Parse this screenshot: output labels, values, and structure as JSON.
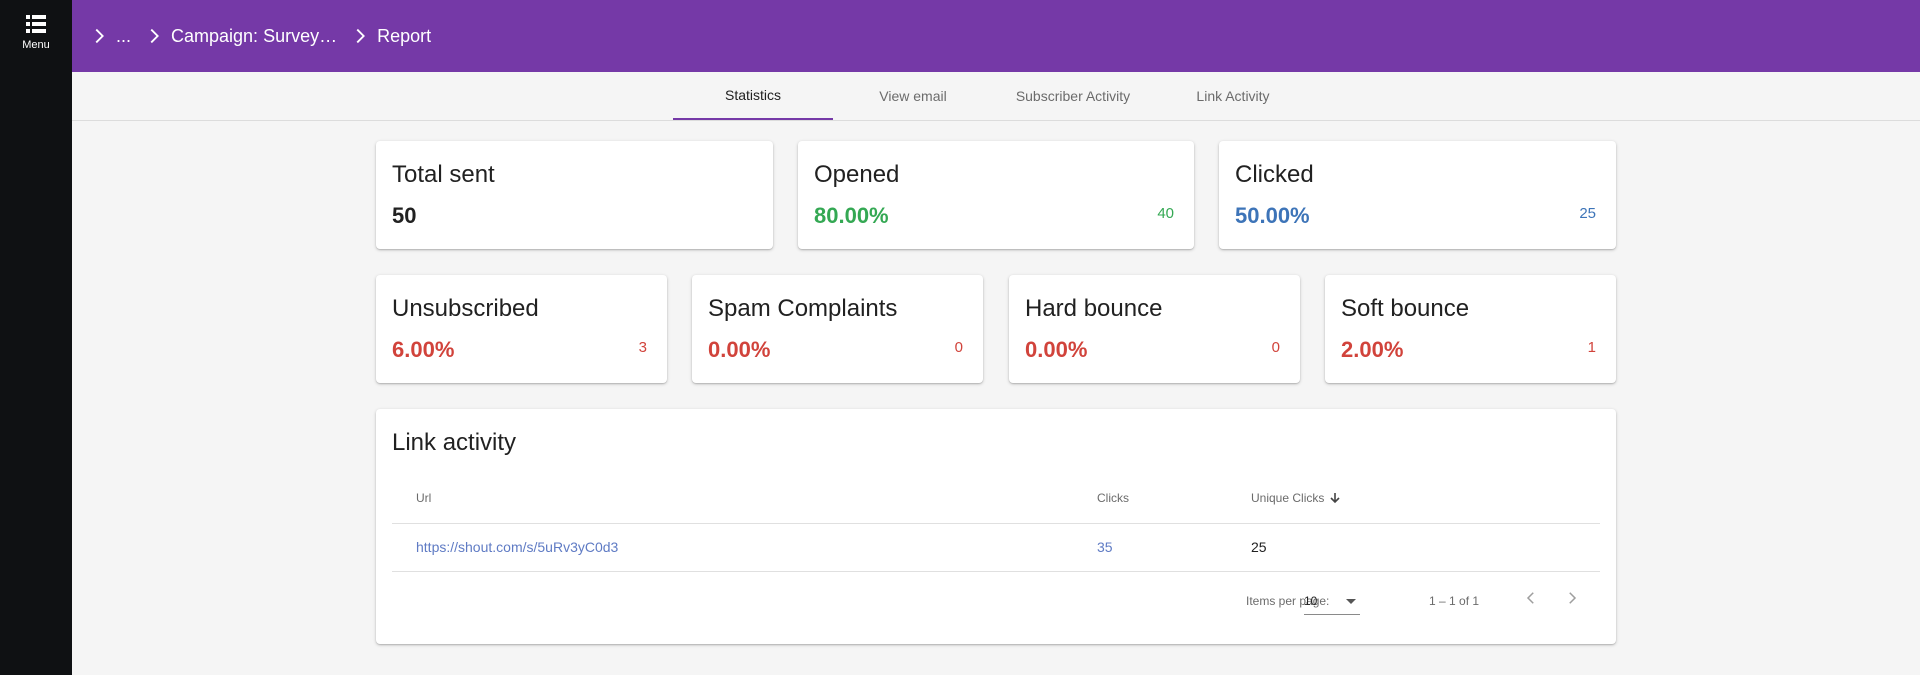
{
  "sidebar": {
    "menu_label": "Menu"
  },
  "breadcrumb": {
    "items": [
      "...",
      "Campaign: Survey…",
      "Report"
    ]
  },
  "tabs": [
    {
      "label": "Statistics",
      "active": true
    },
    {
      "label": "View email",
      "active": false
    },
    {
      "label": "Subscriber Activity",
      "active": false
    },
    {
      "label": "Link Activity",
      "active": false
    }
  ],
  "stats_row1": [
    {
      "title": "Total sent",
      "value": "50",
      "count": "",
      "color": "#212121"
    },
    {
      "title": "Opened",
      "value": "80.00%",
      "count": "40",
      "color": "#34a853"
    },
    {
      "title": "Clicked",
      "value": "50.00%",
      "count": "25",
      "color": "#3d74b8"
    }
  ],
  "stats_row2": [
    {
      "title": "Unsubscribed",
      "value": "6.00%",
      "count": "3",
      "color": "#d1433b"
    },
    {
      "title": "Spam Complaints",
      "value": "0.00%",
      "count": "0",
      "color": "#d1433b"
    },
    {
      "title": "Hard bounce",
      "value": "0.00%",
      "count": "0",
      "color": "#d1433b"
    },
    {
      "title": "Soft bounce",
      "value": "2.00%",
      "count": "1",
      "color": "#d1433b"
    }
  ],
  "link_activity": {
    "title": "Link activity",
    "columns": [
      "Url",
      "Clicks",
      "Unique Clicks"
    ],
    "rows": [
      {
        "url": "https://shout.com/s/5uRv3yC0d3",
        "clicks": "35",
        "unique_clicks": "25"
      }
    ],
    "items_per_page_label": "Items per page:",
    "items_per_page": "10",
    "range": "1 – 1 of 1"
  },
  "colors": {
    "brand": "#7539a7",
    "sidebar": "#0f1113",
    "link": "#5f7bc4"
  }
}
